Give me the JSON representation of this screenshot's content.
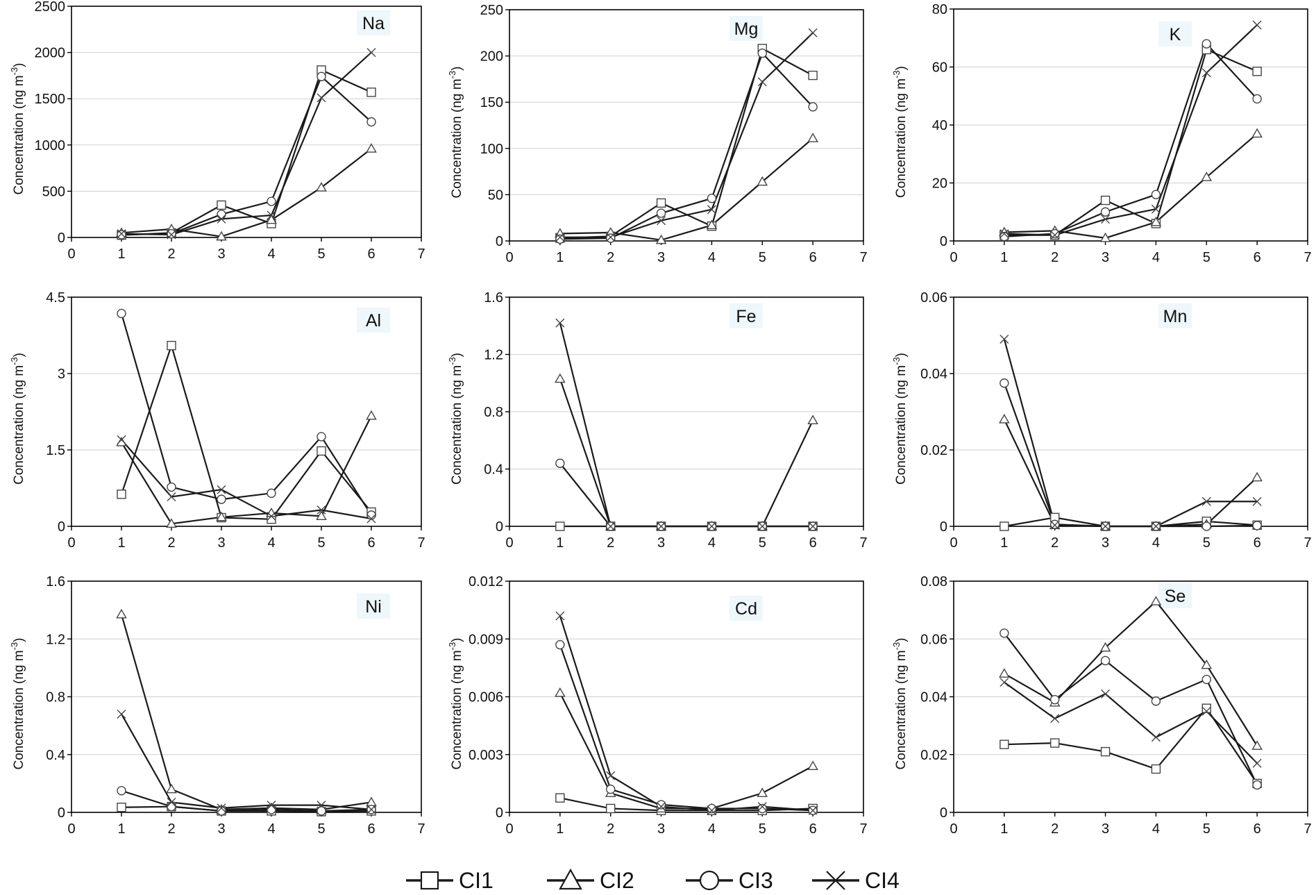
{
  "figure": {
    "x_ticks": [
      "0",
      "1",
      "2",
      "3",
      "4",
      "5",
      "6",
      "7"
    ],
    "ylabel": "Concentration (ng m",
    "ylabel_sup": "-3",
    "ylabel_close": ")"
  },
  "legend": {
    "items": [
      {
        "label": "CI1",
        "marker": "square"
      },
      {
        "label": "CI2",
        "marker": "triangle"
      },
      {
        "label": "CI3",
        "marker": "circle"
      },
      {
        "label": "CI4",
        "marker": "cross"
      }
    ]
  },
  "colors": {
    "line": "#1a1a1a",
    "marker_stroke": "#444444",
    "grid": "#cfcfcf",
    "axis": "#000000",
    "label_bg": "#eef7fb"
  },
  "chart_data": [
    {
      "type": "line",
      "title": "Na",
      "x": [
        1,
        2,
        3,
        4,
        5,
        6
      ],
      "xlim": [
        0,
        7
      ],
      "ylim": [
        0,
        2500
      ],
      "yticks": [
        "0",
        "500",
        "1000",
        "1500",
        "2000",
        "2500"
      ],
      "ytick_values": [
        0,
        500,
        1000,
        1500,
        2000,
        2500
      ],
      "grid": true,
      "series": [
        {
          "name": "CI1",
          "values": [
            25,
            50,
            350,
            150,
            1810,
            1570
          ]
        },
        {
          "name": "CI2",
          "values": [
            50,
            90,
            10,
            190,
            540,
            960
          ]
        },
        {
          "name": "CI3",
          "values": [
            30,
            40,
            250,
            390,
            1740,
            1250
          ]
        },
        {
          "name": "CI4",
          "values": [
            40,
            30,
            200,
            240,
            1510,
            2000
          ]
        }
      ]
    },
    {
      "type": "line",
      "title": "Mg",
      "x": [
        1,
        2,
        3,
        4,
        5,
        6
      ],
      "xlim": [
        0,
        7
      ],
      "ylim": [
        0,
        250
      ],
      "yticks": [
        "0",
        "50",
        "100",
        "150",
        "200",
        "250"
      ],
      "ytick_values": [
        0,
        50,
        100,
        150,
        200,
        250
      ],
      "grid": true,
      "series": [
        {
          "name": "CI1",
          "values": [
            3,
            5,
            41,
            16,
            208,
            179
          ]
        },
        {
          "name": "CI2",
          "values": [
            8,
            9,
            1,
            17,
            64,
            111
          ]
        },
        {
          "name": "CI3",
          "values": [
            2,
            3,
            30,
            46,
            203,
            145
          ]
        },
        {
          "name": "CI4",
          "values": [
            4,
            4,
            22,
            34,
            172,
            225
          ]
        }
      ]
    },
    {
      "type": "line",
      "title": "K",
      "x": [
        1,
        2,
        3,
        4,
        5,
        6
      ],
      "xlim": [
        0,
        7
      ],
      "ylim": [
        0,
        80
      ],
      "yticks": [
        "0",
        "20",
        "40",
        "60",
        "80"
      ],
      "ytick_values": [
        0,
        20,
        40,
        60,
        80
      ],
      "grid": true,
      "series": [
        {
          "name": "CI1",
          "values": [
            2,
            2,
            14,
            6,
            66,
            58.5
          ]
        },
        {
          "name": "CI2",
          "values": [
            3,
            3.5,
            1,
            6.5,
            22,
            37
          ]
        },
        {
          "name": "CI3",
          "values": [
            1.5,
            2.5,
            10,
            16,
            68,
            49
          ]
        },
        {
          "name": "CI4",
          "values": [
            2.5,
            2,
            7.5,
            11,
            58,
            74.5
          ]
        }
      ]
    },
    {
      "type": "line",
      "title": "Al",
      "x": [
        1,
        2,
        3,
        4,
        5,
        6
      ],
      "xlim": [
        0,
        7
      ],
      "ylim": [
        0,
        4.5
      ],
      "yticks": [
        "0",
        "1.5",
        "3",
        "4.5"
      ],
      "ytick_values": [
        0,
        1.5,
        3,
        4.5
      ],
      "grid": true,
      "series": [
        {
          "name": "CI1",
          "values": [
            0.63,
            3.55,
            0.17,
            0.14,
            1.48,
            0.28
          ]
        },
        {
          "name": "CI2",
          "values": [
            1.65,
            0.05,
            0.18,
            0.26,
            0.2,
            2.17
          ]
        },
        {
          "name": "CI3",
          "values": [
            4.18,
            0.77,
            0.53,
            0.65,
            1.76,
            0.22
          ]
        },
        {
          "name": "CI4",
          "values": [
            1.7,
            0.58,
            0.72,
            0.2,
            0.32,
            0.15
          ]
        }
      ]
    },
    {
      "type": "line",
      "title": "Fe",
      "x": [
        1,
        2,
        3,
        4,
        5,
        6
      ],
      "xlim": [
        0,
        7
      ],
      "ylim": [
        0,
        1.6
      ],
      "yticks": [
        "0",
        "0.4",
        "0.8",
        "1.2",
        "1.6"
      ],
      "ytick_values": [
        0,
        0.4,
        0.8,
        1.2,
        1.6
      ],
      "grid": true,
      "series": [
        {
          "name": "CI1",
          "values": [
            0,
            0,
            0,
            0,
            0,
            0
          ]
        },
        {
          "name": "CI2",
          "values": [
            1.03,
            0,
            0,
            0,
            0,
            0.74
          ]
        },
        {
          "name": "CI3",
          "values": [
            0.44,
            0,
            0,
            0,
            0,
            0
          ]
        },
        {
          "name": "CI4",
          "values": [
            1.42,
            0,
            0,
            0,
            0,
            0
          ]
        }
      ]
    },
    {
      "type": "line",
      "title": "Mn",
      "x": [
        1,
        2,
        3,
        4,
        5,
        6
      ],
      "xlim": [
        0,
        7
      ],
      "ylim": [
        0,
        0.06
      ],
      "yticks": [
        "0",
        "0.02",
        "0.04",
        "0.06"
      ],
      "ytick_values": [
        0,
        0.02,
        0.04,
        0.06
      ],
      "grid": true,
      "series": [
        {
          "name": "CI1",
          "values": [
            0,
            0.0023,
            0,
            0,
            0.0013,
            0.0003
          ]
        },
        {
          "name": "CI2",
          "values": [
            0.028,
            0.0003,
            0,
            0,
            0.0005,
            0.0128
          ]
        },
        {
          "name": "CI3",
          "values": [
            0.0375,
            0.0005,
            0,
            0,
            0,
            0.0002
          ]
        },
        {
          "name": "CI4",
          "values": [
            0.049,
            0.0003,
            0,
            0,
            0.0065,
            0.0065
          ]
        }
      ]
    },
    {
      "type": "line",
      "title": "Ni",
      "x": [
        1,
        2,
        3,
        4,
        5,
        6
      ],
      "xlim": [
        0,
        7
      ],
      "ylim": [
        0,
        1.6
      ],
      "yticks": [
        "0",
        "0.4",
        "0.8",
        "1.2",
        "1.6"
      ],
      "ytick_values": [
        0,
        0.4,
        0.8,
        1.2,
        1.6
      ],
      "grid": true,
      "series": [
        {
          "name": "CI1",
          "values": [
            0.035,
            0.04,
            0.01,
            0.01,
            0.005,
            0.01
          ]
        },
        {
          "name": "CI2",
          "values": [
            1.37,
            0.16,
            0.02,
            0.03,
            0.02,
            0.07
          ]
        },
        {
          "name": "CI3",
          "values": [
            0.15,
            0.04,
            0.01,
            0.02,
            0.01,
            0.02
          ]
        },
        {
          "name": "CI4",
          "values": [
            0.68,
            0.07,
            0.03,
            0.05,
            0.05,
            0.02
          ]
        }
      ]
    },
    {
      "type": "line",
      "title": "Cd",
      "x": [
        1,
        2,
        3,
        4,
        5,
        6
      ],
      "xlim": [
        0,
        7
      ],
      "ylim": [
        0,
        0.012
      ],
      "yticks": [
        "0",
        "0.003",
        "0.006",
        "0.009",
        "0.012"
      ],
      "ytick_values": [
        0,
        0.003,
        0.006,
        0.009,
        0.012
      ],
      "grid": true,
      "series": [
        {
          "name": "CI1",
          "values": [
            0.00075,
            0.0002,
            0.0001,
            0.0001,
            0.0001,
            0.0002
          ]
        },
        {
          "name": "CI2",
          "values": [
            0.0062,
            0.001,
            0.0002,
            0.0002,
            0.001,
            0.0024
          ]
        },
        {
          "name": "CI3",
          "values": [
            0.0087,
            0.0012,
            0.0004,
            0.0002,
            0.0002,
            0.0001
          ]
        },
        {
          "name": "CI4",
          "values": [
            0.0102,
            0.0019,
            0.0003,
            0.0001,
            0.0003,
            0.0001
          ]
        }
      ]
    },
    {
      "type": "line",
      "title": "Se",
      "x": [
        1,
        2,
        3,
        4,
        5,
        6
      ],
      "xlim": [
        0,
        7
      ],
      "ylim": [
        0,
        0.08
      ],
      "yticks": [
        "0",
        "0.02",
        "0.04",
        "0.06",
        "0.08"
      ],
      "ytick_values": [
        0,
        0.02,
        0.04,
        0.06,
        0.08
      ],
      "grid": true,
      "series": [
        {
          "name": "CI1",
          "values": [
            0.0235,
            0.024,
            0.021,
            0.015,
            0.036,
            0.01
          ]
        },
        {
          "name": "CI2",
          "values": [
            0.048,
            0.038,
            0.057,
            0.073,
            0.051,
            0.023
          ]
        },
        {
          "name": "CI3",
          "values": [
            0.062,
            0.039,
            0.0525,
            0.0385,
            0.046,
            0.0095
          ]
        },
        {
          "name": "CI4",
          "values": [
            0.045,
            0.0325,
            0.041,
            0.026,
            0.035,
            0.017
          ]
        }
      ]
    }
  ]
}
